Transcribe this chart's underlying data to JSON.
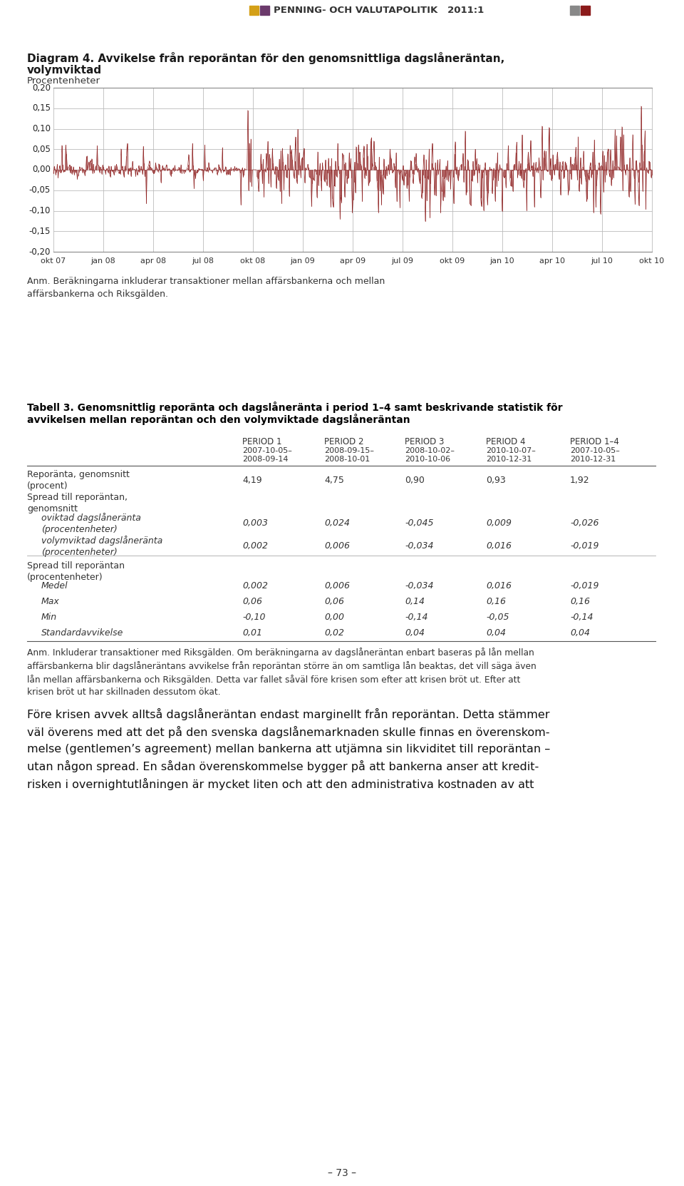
{
  "page_header": "PENNING- OCH VALUTAPOLITIK   2011:1",
  "diagram_title_line1": "Diagram 4. Avvikelse från reporäntan för den genomsnittliga dagslåneräntan,",
  "diagram_title_line2": "volymviktad",
  "ylabel": "Procentenheter",
  "yticks": [
    0.2,
    0.15,
    0.1,
    0.05,
    0.0,
    -0.05,
    -0.1,
    -0.15,
    -0.2
  ],
  "ytick_labels": [
    "0,20",
    "0,15",
    "0,10",
    "0,05",
    "0,00",
    "-0,05",
    "-0,10",
    "-0,15",
    "-0,20"
  ],
  "xlabels": [
    "okt 07",
    "jan 08",
    "apr 08",
    "jul 08",
    "okt 08",
    "jan 09",
    "apr 09",
    "jul 09",
    "okt 09",
    "jan 10",
    "apr 10",
    "jul 10",
    "okt 10"
  ],
  "chart_note": "Anm. Beräkningarna inkluderar transaktioner mellan affärsbankerna och mellan\naffärsbankerna och Riksgälden.",
  "line_color": "#8B1A1A",
  "grid_color": "#BBBBBB",
  "table_title_line1": "Tabell 3. Genomsnittlig reporänta och dagslåneränta i period 1–4 samt beskrivande statistik för",
  "table_title_line2": "avvikelsen mellan reporäntan och den volymviktade dagslåneräntan",
  "col_headers": [
    "PERIOD 1",
    "PERIOD 2",
    "PERIOD 3",
    "PERIOD 4",
    "PERIOD 1–4"
  ],
  "col_dates1": [
    "2007-10-05–",
    "2008-09-15–",
    "2008-10-02–",
    "2010-10-07–",
    "2007-10-05–"
  ],
  "col_dates2": [
    "2008-09-14",
    "2008-10-01",
    "2010-10-06",
    "2010-12-31",
    "2010-12-31"
  ],
  "table_note": "Anm. Inkluderar transaktioner med Riksgälden. Om beräkningarna av dagslåneräntan enbart baseras på lån mellan\naffärsbankerna blir dagslåneräntans avvikelse från reporäntan större än om samtliga lån beaktas, det vill säga även\nlån mellan affärsbankerna och Riksgälden. Detta var fallet såväl före krisen som efter att krisen bröt ut. Efter att\nkrisen bröt ut har skillnaden dessutom ökat.",
  "body_text": "Före krisen avvek alltså dagslåneräntan endast marginellt från reporäntan. Detta stämmer\nväl överens med att det på den svenska dagslånemarknaden skulle finnas en överenskom-\nmelse (gentlemen’s agreement) mellan bankerna att utjämna sin likviditet till reporäntan –\nutan någon spread. En sådan överenskommelse bygger på att bankerna anser att kredit-\nrisken i overnightutlåningen är mycket liten och att den administrativa kostnaden av att",
  "page_number": "– 73 –",
  "hdr_sq_colors": [
    "#D4A017",
    "#6B3A6B",
    "#888888",
    "#8B1A1A"
  ],
  "separator_color": "#888888",
  "line_color_dark": "#555555"
}
